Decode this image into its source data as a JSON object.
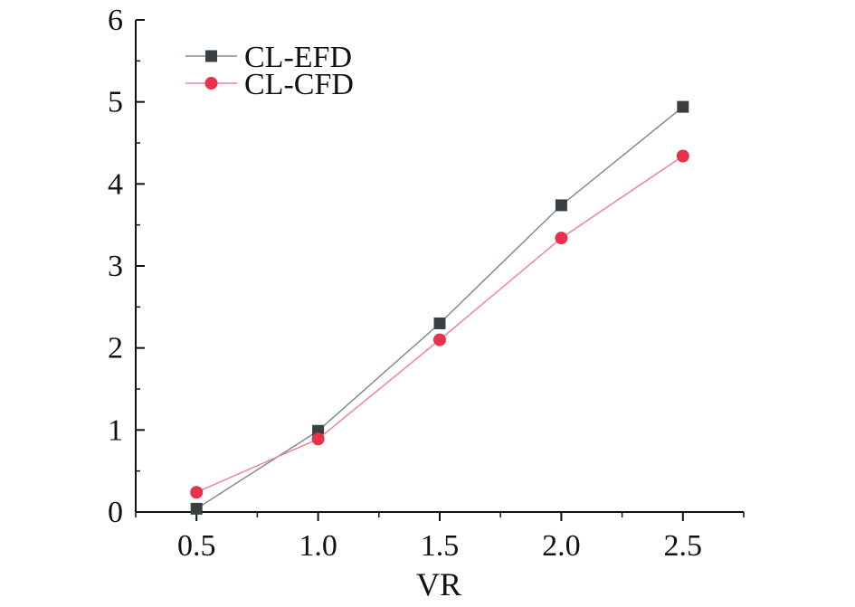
{
  "chart_data": {
    "type": "line",
    "title": "",
    "xlabel": "VR",
    "ylabel": "",
    "x": [
      0.5,
      1.0,
      1.5,
      2.0,
      2.5
    ],
    "xlim": [
      0.25,
      2.75
    ],
    "ylim": [
      0,
      6
    ],
    "x_ticks": [
      "0.5",
      "1.0",
      "1.5",
      "2.0",
      "2.5"
    ],
    "y_ticks": [
      "0",
      "1",
      "2",
      "3",
      "4",
      "5",
      "6"
    ],
    "grid": false,
    "legend_position": "top-left",
    "series": [
      {
        "name": "CL-EFD",
        "marker": "square",
        "color": "#3a3f44",
        "line_color": "#7f8c97",
        "values": [
          0.04,
          0.99,
          2.3,
          3.74,
          4.94
        ]
      },
      {
        "name": "CL-CFD",
        "marker": "circle",
        "color": "#e8304f",
        "line_color": "#f0839a",
        "values": [
          0.24,
          0.89,
          2.1,
          3.34,
          4.34
        ]
      }
    ]
  }
}
